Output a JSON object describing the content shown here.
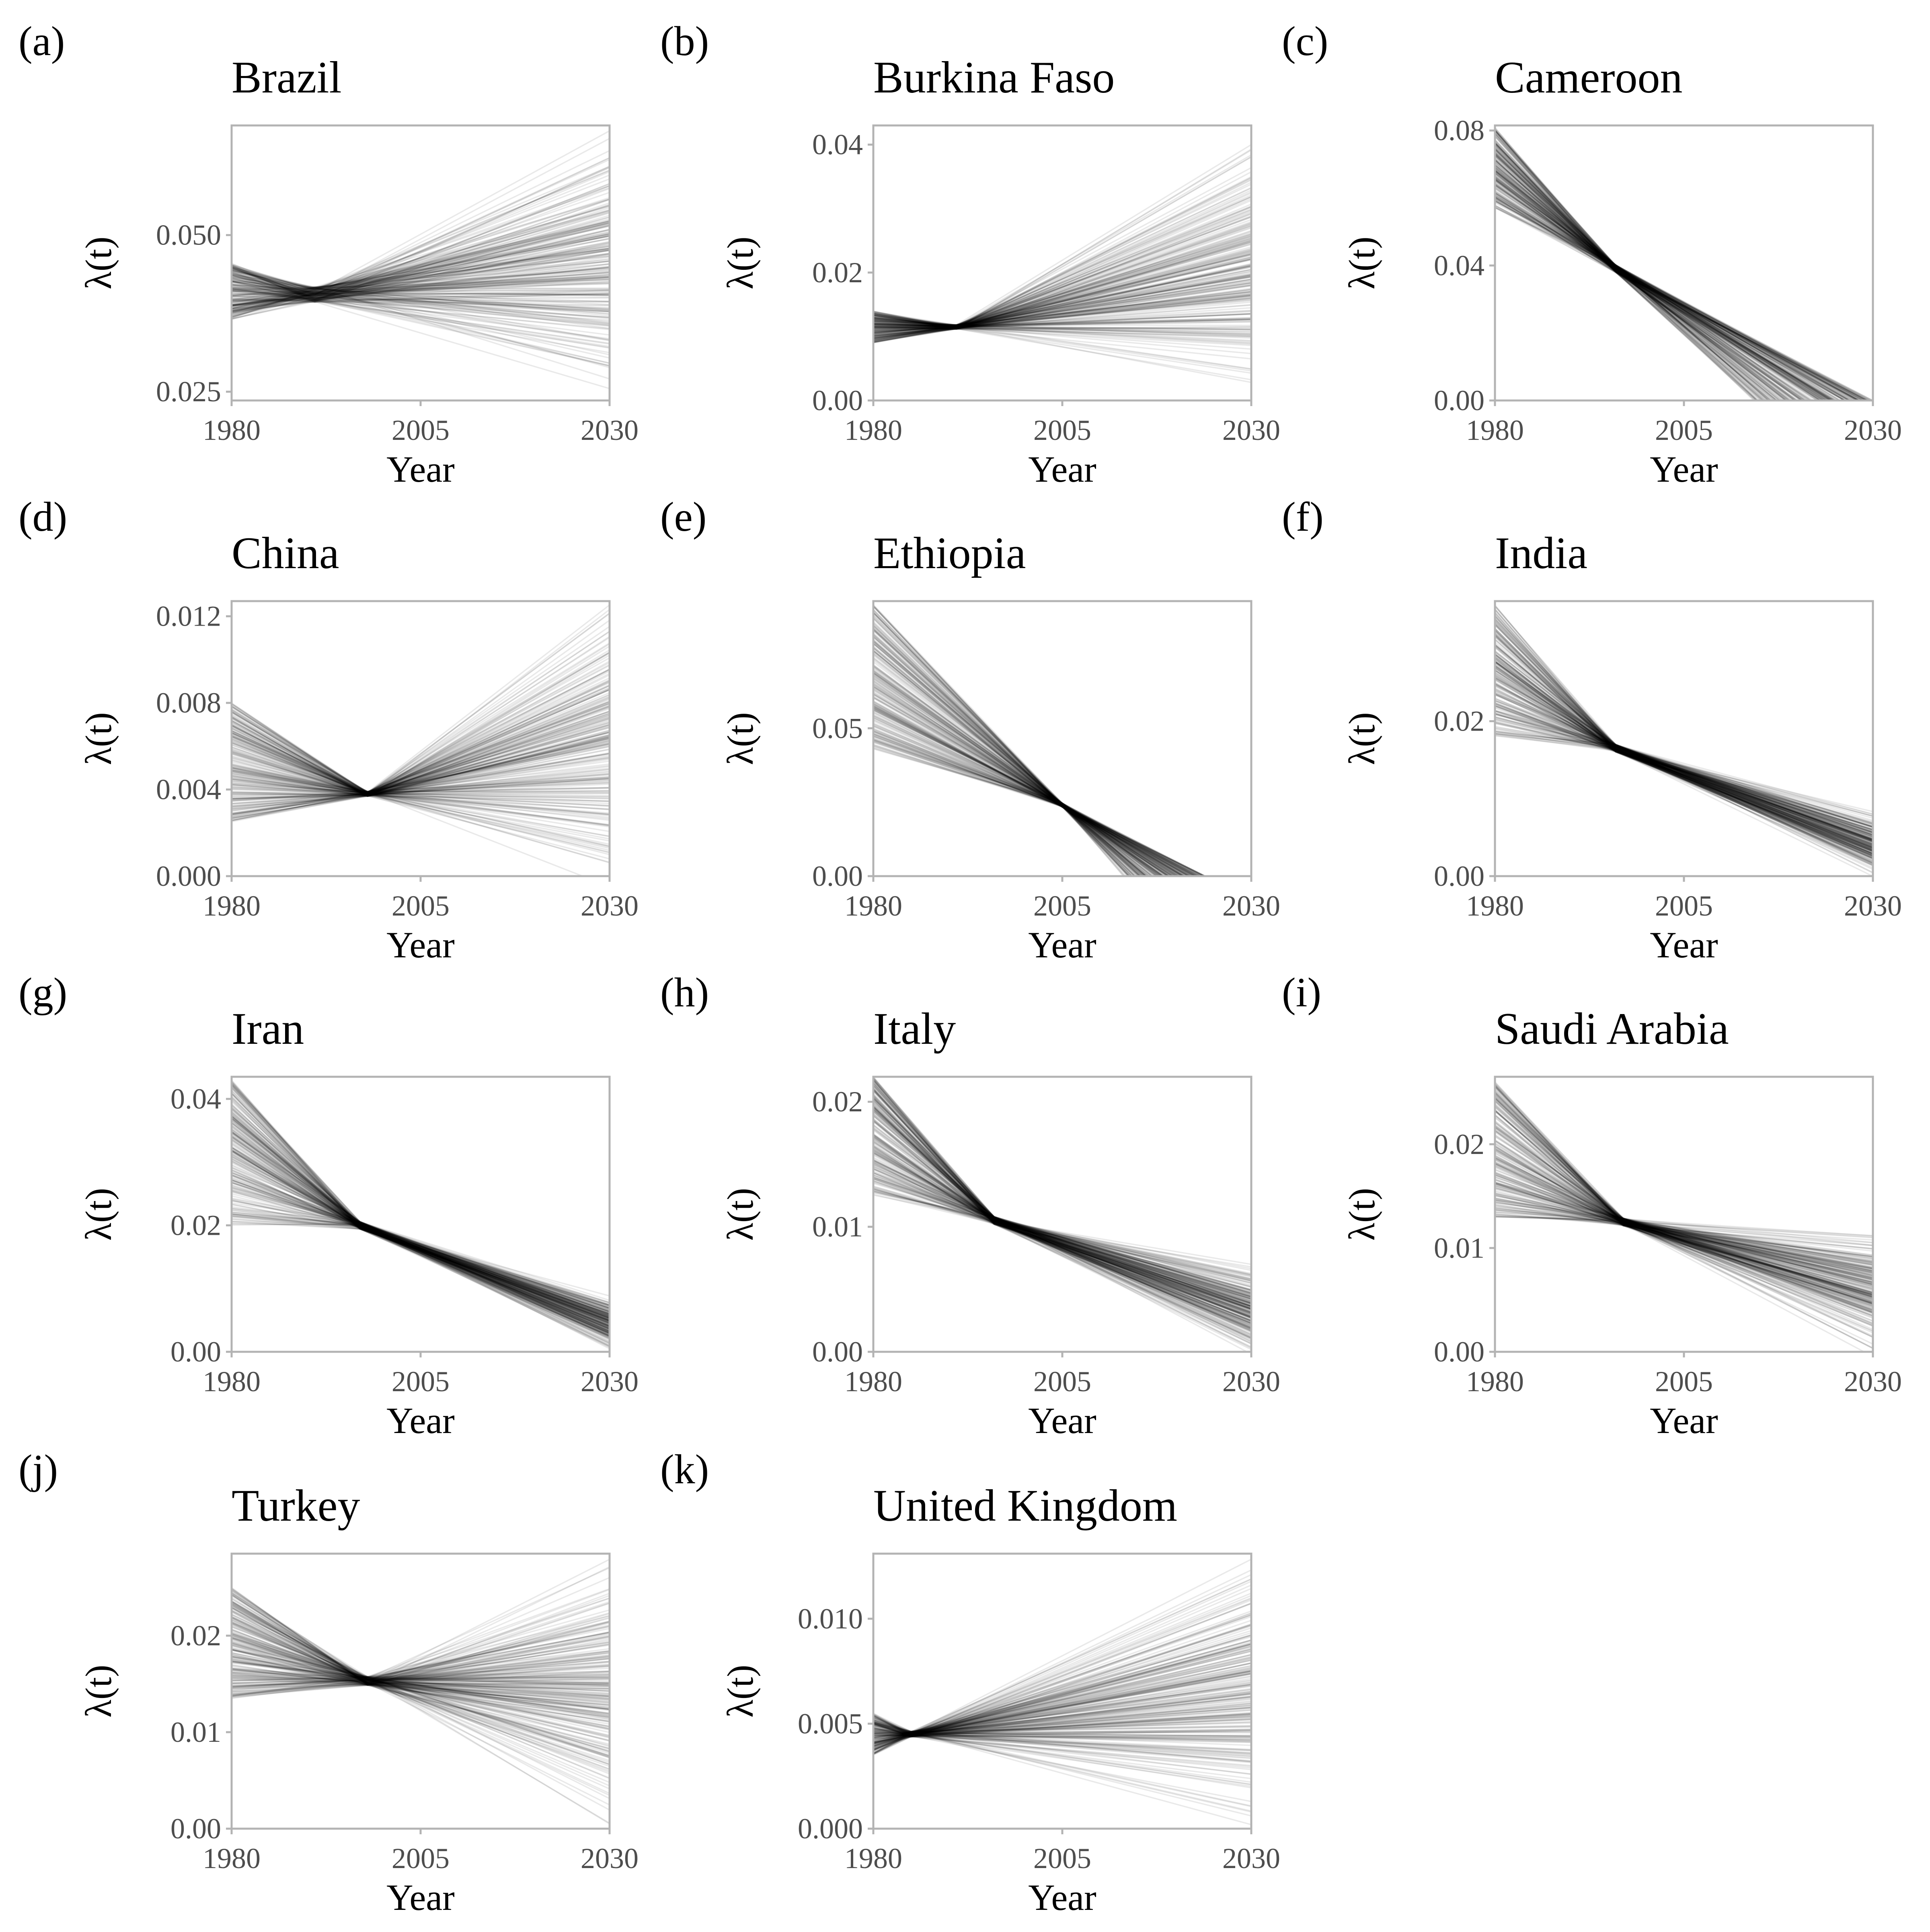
{
  "chart_data": [
    {
      "panel": "(a)",
      "title": "Brazil",
      "type": "line",
      "xlabel": "Year",
      "ylabel": "λ(t)",
      "xlim": [
        1980,
        2030
      ],
      "ylim": [
        0.0236,
        0.0675
      ],
      "xticks": [
        1980,
        2005,
        2030
      ],
      "xtick_labels": [
        "1980",
        "2005",
        "2030"
      ],
      "yticks": [
        0.025,
        0.05
      ],
      "ytick_labels": [
        "0.025",
        "0.050"
      ],
      "trajectories": {
        "count": 240,
        "start_range": [
          0.0365,
          0.0455
        ],
        "pivot_year": 1991,
        "pivot_value": 0.0405,
        "end_range": [
          0.0245,
          0.0675
        ],
        "grid": false
      }
    },
    {
      "panel": "(b)",
      "title": "Burkina Faso",
      "type": "line",
      "xlabel": "Year",
      "ylabel": "λ(t)",
      "xlim": [
        1980,
        2030
      ],
      "ylim": [
        0,
        0.043
      ],
      "xticks": [
        1980,
        2005,
        2030
      ],
      "xtick_labels": [
        "1980",
        "2005",
        "2030"
      ],
      "yticks": [
        0.0,
        0.02,
        0.04
      ],
      "ytick_labels": [
        "0.00",
        "0.02",
        "0.04"
      ],
      "trajectories": {
        "count": 240,
        "start_range": [
          0.009,
          0.014
        ],
        "pivot_year": 1991,
        "pivot_value": 0.0115,
        "end_range": [
          0.0,
          0.042
        ]
      }
    },
    {
      "panel": "(c)",
      "title": "Cameroon",
      "type": "line",
      "xlabel": "Year",
      "ylabel": "λ(t)",
      "xlim": [
        1980,
        2030
      ],
      "ylim": [
        0,
        0.0815
      ],
      "xticks": [
        1980,
        2005,
        2030
      ],
      "xtick_labels": [
        "1980",
        "2005",
        "2030"
      ],
      "yticks": [
        0.0,
        0.04,
        0.08
      ],
      "ytick_labels": [
        "0.00",
        "0.04",
        "0.08"
      ],
      "trajectories": {
        "count": 240,
        "start_range": [
          0.057,
          0.081
        ],
        "pivot_year": 1996,
        "pivot_value": 0.039,
        "zero_year_range": [
          2014,
          2030
        ]
      }
    },
    {
      "panel": "(d)",
      "title": "China",
      "type": "line",
      "xlabel": "Year",
      "ylabel": "λ(t)",
      "xlim": [
        1980,
        2030
      ],
      "ylim": [
        0,
        0.0127
      ],
      "xticks": [
        1980,
        2005,
        2030
      ],
      "xtick_labels": [
        "1980",
        "2005",
        "2030"
      ],
      "yticks": [
        0.0,
        0.004,
        0.008,
        0.012
      ],
      "ytick_labels": [
        "0.000",
        "0.004",
        "0.008",
        "0.012"
      ],
      "trajectories": {
        "count": 240,
        "start_range": [
          0.0025,
          0.008
        ],
        "pivot_year": 1998,
        "pivot_value": 0.0038,
        "end_range": [
          0.0,
          0.0127
        ]
      }
    },
    {
      "panel": "(e)",
      "title": "Ethiopia",
      "type": "line",
      "xlabel": "Year",
      "ylabel": "λ(t)",
      "xlim": [
        1980,
        2030
      ],
      "ylim": [
        0,
        0.093
      ],
      "xticks": [
        1980,
        2005,
        2030
      ],
      "xtick_labels": [
        "1980",
        "2005",
        "2030"
      ],
      "yticks": [
        0.0,
        0.05
      ],
      "ytick_labels": [
        "0.00",
        "0.05"
      ],
      "trajectories": {
        "count": 240,
        "start_range": [
          0.043,
          0.092
        ],
        "pivot_year": 2005,
        "pivot_value": 0.024,
        "zero_year_range": [
          2013,
          2024
        ]
      }
    },
    {
      "panel": "(f)",
      "title": "India",
      "type": "line",
      "xlabel": "Year",
      "ylabel": "λ(t)",
      "xlim": [
        1980,
        2030
      ],
      "ylim": [
        0,
        0.0355
      ],
      "xticks": [
        1980,
        2005,
        2030
      ],
      "xtick_labels": [
        "1980",
        "2005",
        "2030"
      ],
      "yticks": [
        0.0,
        0.02
      ],
      "ytick_labels": [
        "0.00",
        "0.02"
      ],
      "trajectories": {
        "count": 240,
        "start_range": [
          0.018,
          0.035
        ],
        "pivot_year": 1996,
        "pivot_value": 0.0165,
        "end_range": [
          0.0,
          0.0085
        ]
      }
    },
    {
      "panel": "(g)",
      "title": "Iran",
      "type": "line",
      "xlabel": "Year",
      "ylabel": "λ(t)",
      "xlim": [
        1980,
        2030
      ],
      "ylim": [
        0,
        0.0435
      ],
      "xticks": [
        1980,
        2005,
        2030
      ],
      "xtick_labels": [
        "1980",
        "2005",
        "2030"
      ],
      "yticks": [
        0.0,
        0.02,
        0.04
      ],
      "ytick_labels": [
        "0.00",
        "0.02",
        "0.04"
      ],
      "trajectories": {
        "count": 240,
        "start_range": [
          0.02,
          0.043
        ],
        "pivot_year": 1997,
        "pivot_value": 0.02,
        "end_range": [
          0.0,
          0.009
        ]
      }
    },
    {
      "panel": "(h)",
      "title": "Italy",
      "type": "line",
      "xlabel": "Year",
      "ylabel": "λ(t)",
      "xlim": [
        1980,
        2030
      ],
      "ylim": [
        0,
        0.022
      ],
      "xticks": [
        1980,
        2005,
        2030
      ],
      "xtick_labels": [
        "1980",
        "2005",
        "2030"
      ],
      "yticks": [
        0.0,
        0.01,
        0.02
      ],
      "ytick_labels": [
        "0.00",
        "0.01",
        "0.02"
      ],
      "trajectories": {
        "count": 240,
        "start_range": [
          0.0125,
          0.022
        ],
        "pivot_year": 1996,
        "pivot_value": 0.0105,
        "end_range": [
          0.0,
          0.007
        ]
      }
    },
    {
      "panel": "(i)",
      "title": "Saudi Arabia",
      "type": "line",
      "xlabel": "Year",
      "ylabel": "λ(t)",
      "xlim": [
        1980,
        2030
      ],
      "ylim": [
        0,
        0.0265
      ],
      "xticks": [
        1980,
        2005,
        2030
      ],
      "xtick_labels": [
        "1980",
        "2005",
        "2030"
      ],
      "yticks": [
        0.0,
        0.01,
        0.02
      ],
      "ytick_labels": [
        "0.00",
        "0.01",
        "0.02"
      ],
      "trajectories": {
        "count": 240,
        "start_range": [
          0.013,
          0.026
        ],
        "pivot_year": 1997,
        "pivot_value": 0.0125,
        "end_range": [
          0.0,
          0.0122
        ]
      }
    },
    {
      "panel": "(j)",
      "title": "Turkey",
      "type": "line",
      "xlabel": "Year",
      "ylabel": "λ(t)",
      "xlim": [
        1980,
        2030
      ],
      "ylim": [
        0,
        0.0285
      ],
      "xticks": [
        1980,
        2005,
        2030
      ],
      "xtick_labels": [
        "1980",
        "2005",
        "2030"
      ],
      "yticks": [
        0.0,
        0.01,
        0.02
      ],
      "ytick_labels": [
        "0.00",
        "0.01",
        "0.02"
      ],
      "trajectories": {
        "count": 240,
        "start_range": [
          0.0135,
          0.025
        ],
        "pivot_year": 1998,
        "pivot_value": 0.0153,
        "end_range": [
          0.0,
          0.028
        ]
      }
    },
    {
      "panel": "(k)",
      "title": "United Kingdom",
      "type": "line",
      "xlabel": "Year",
      "ylabel": "λ(t)",
      "xlim": [
        1980,
        2030
      ],
      "ylim": [
        0,
        0.0131
      ],
      "xticks": [
        1980,
        2005,
        2030
      ],
      "xtick_labels": [
        "1980",
        "2005",
        "2030"
      ],
      "yticks": [
        0.0,
        0.005,
        0.01
      ],
      "ytick_labels": [
        "0.000",
        "0.005",
        "0.010"
      ],
      "trajectories": {
        "count": 240,
        "start_range": [
          0.0035,
          0.0055
        ],
        "pivot_year": 1985,
        "pivot_value": 0.0045,
        "end_range": [
          0.0,
          0.013
        ]
      }
    }
  ]
}
